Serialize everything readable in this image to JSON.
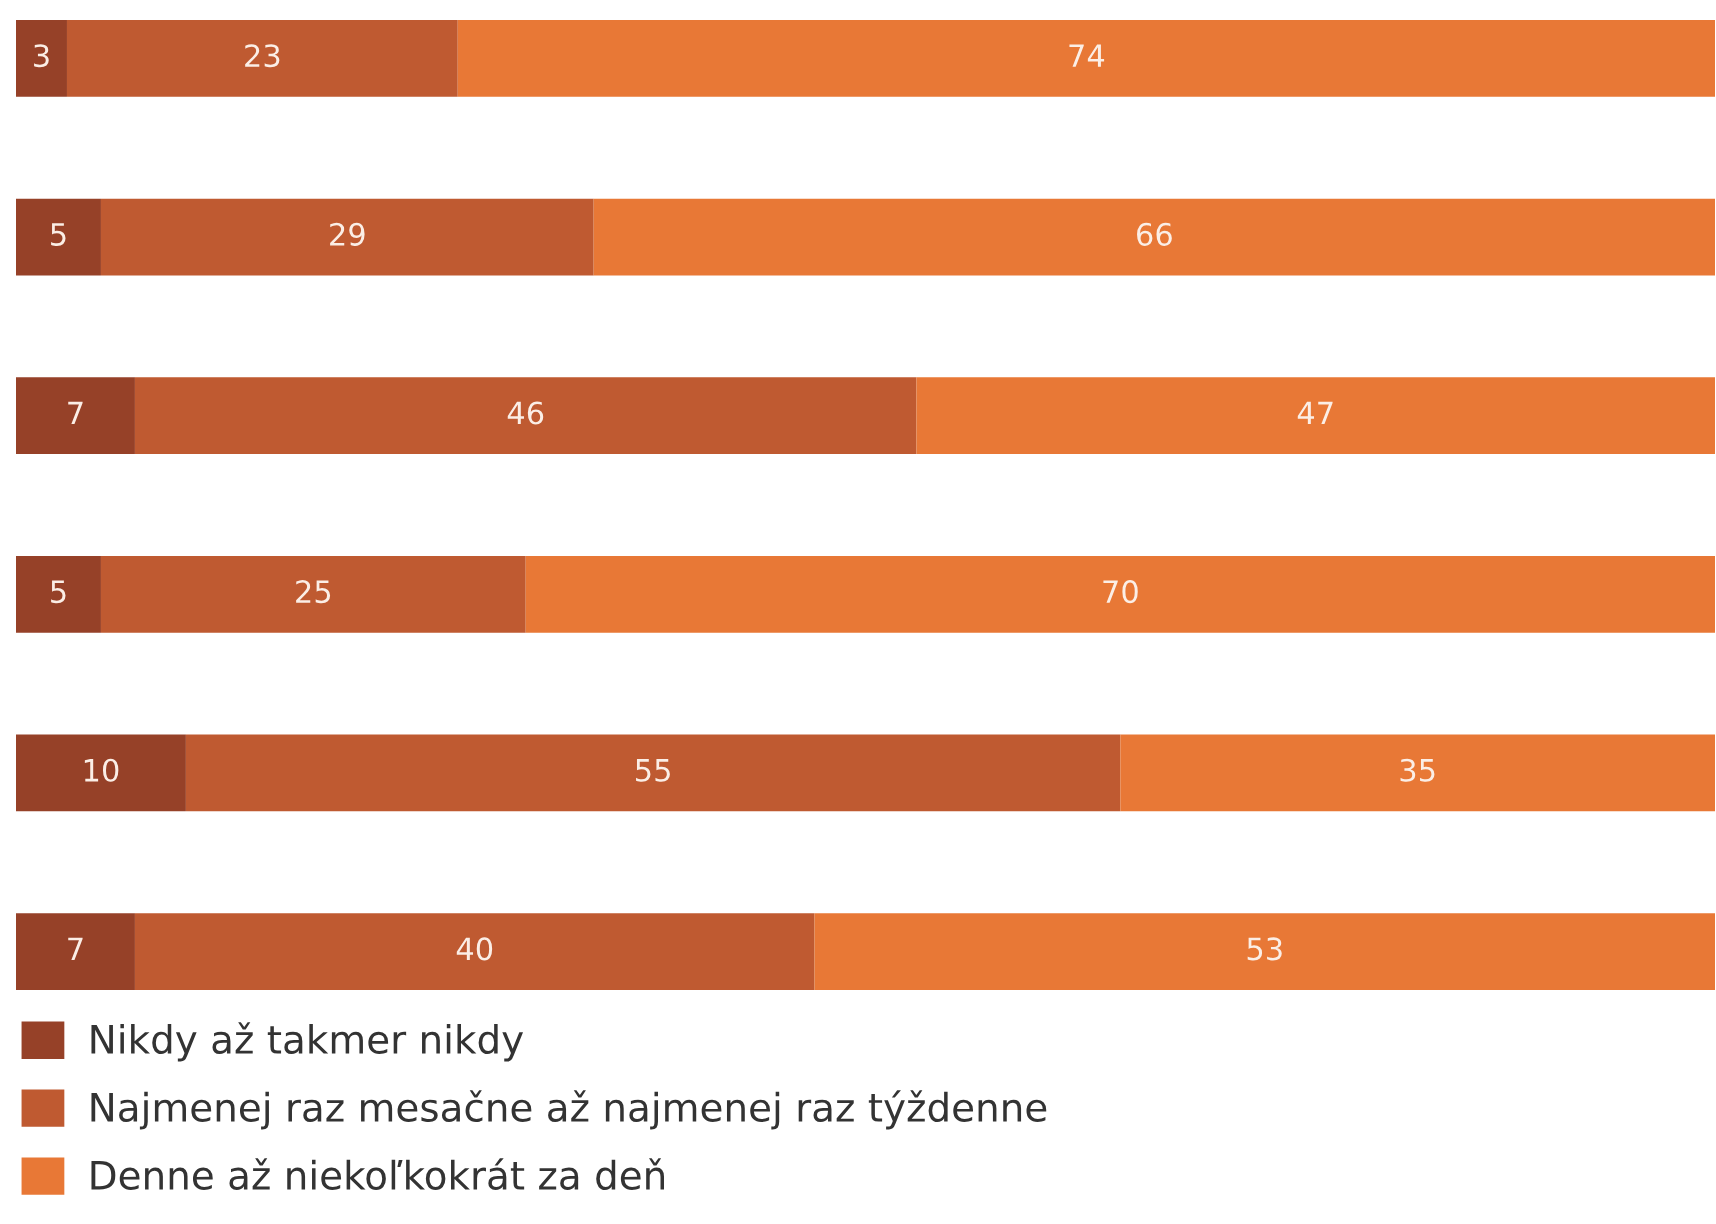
{
  "chart_data": {
    "type": "bar",
    "orientation": "horizontal",
    "stacked": true,
    "categories": [
      null,
      null,
      null,
      null,
      null,
      null
    ],
    "series": [
      {
        "name": "Nikdy až takmer nikdy",
        "color": "#964128",
        "values": [
          3,
          5,
          7,
          5,
          10,
          7
        ]
      },
      {
        "name": "Najmenej raz mesačne až najmenej raz týždenne",
        "color": "#bf5a31",
        "values": [
          23,
          29,
          46,
          25,
          55,
          40
        ]
      },
      {
        "name": "Denne až niekoľkokrát za deň",
        "color": "#e87836",
        "values": [
          74,
          66,
          47,
          70,
          35,
          53
        ]
      }
    ],
    "xlim": [
      0,
      100
    ],
    "tick_labels": false,
    "data_labels": true,
    "legend": "bottom",
    "grid": false
  }
}
